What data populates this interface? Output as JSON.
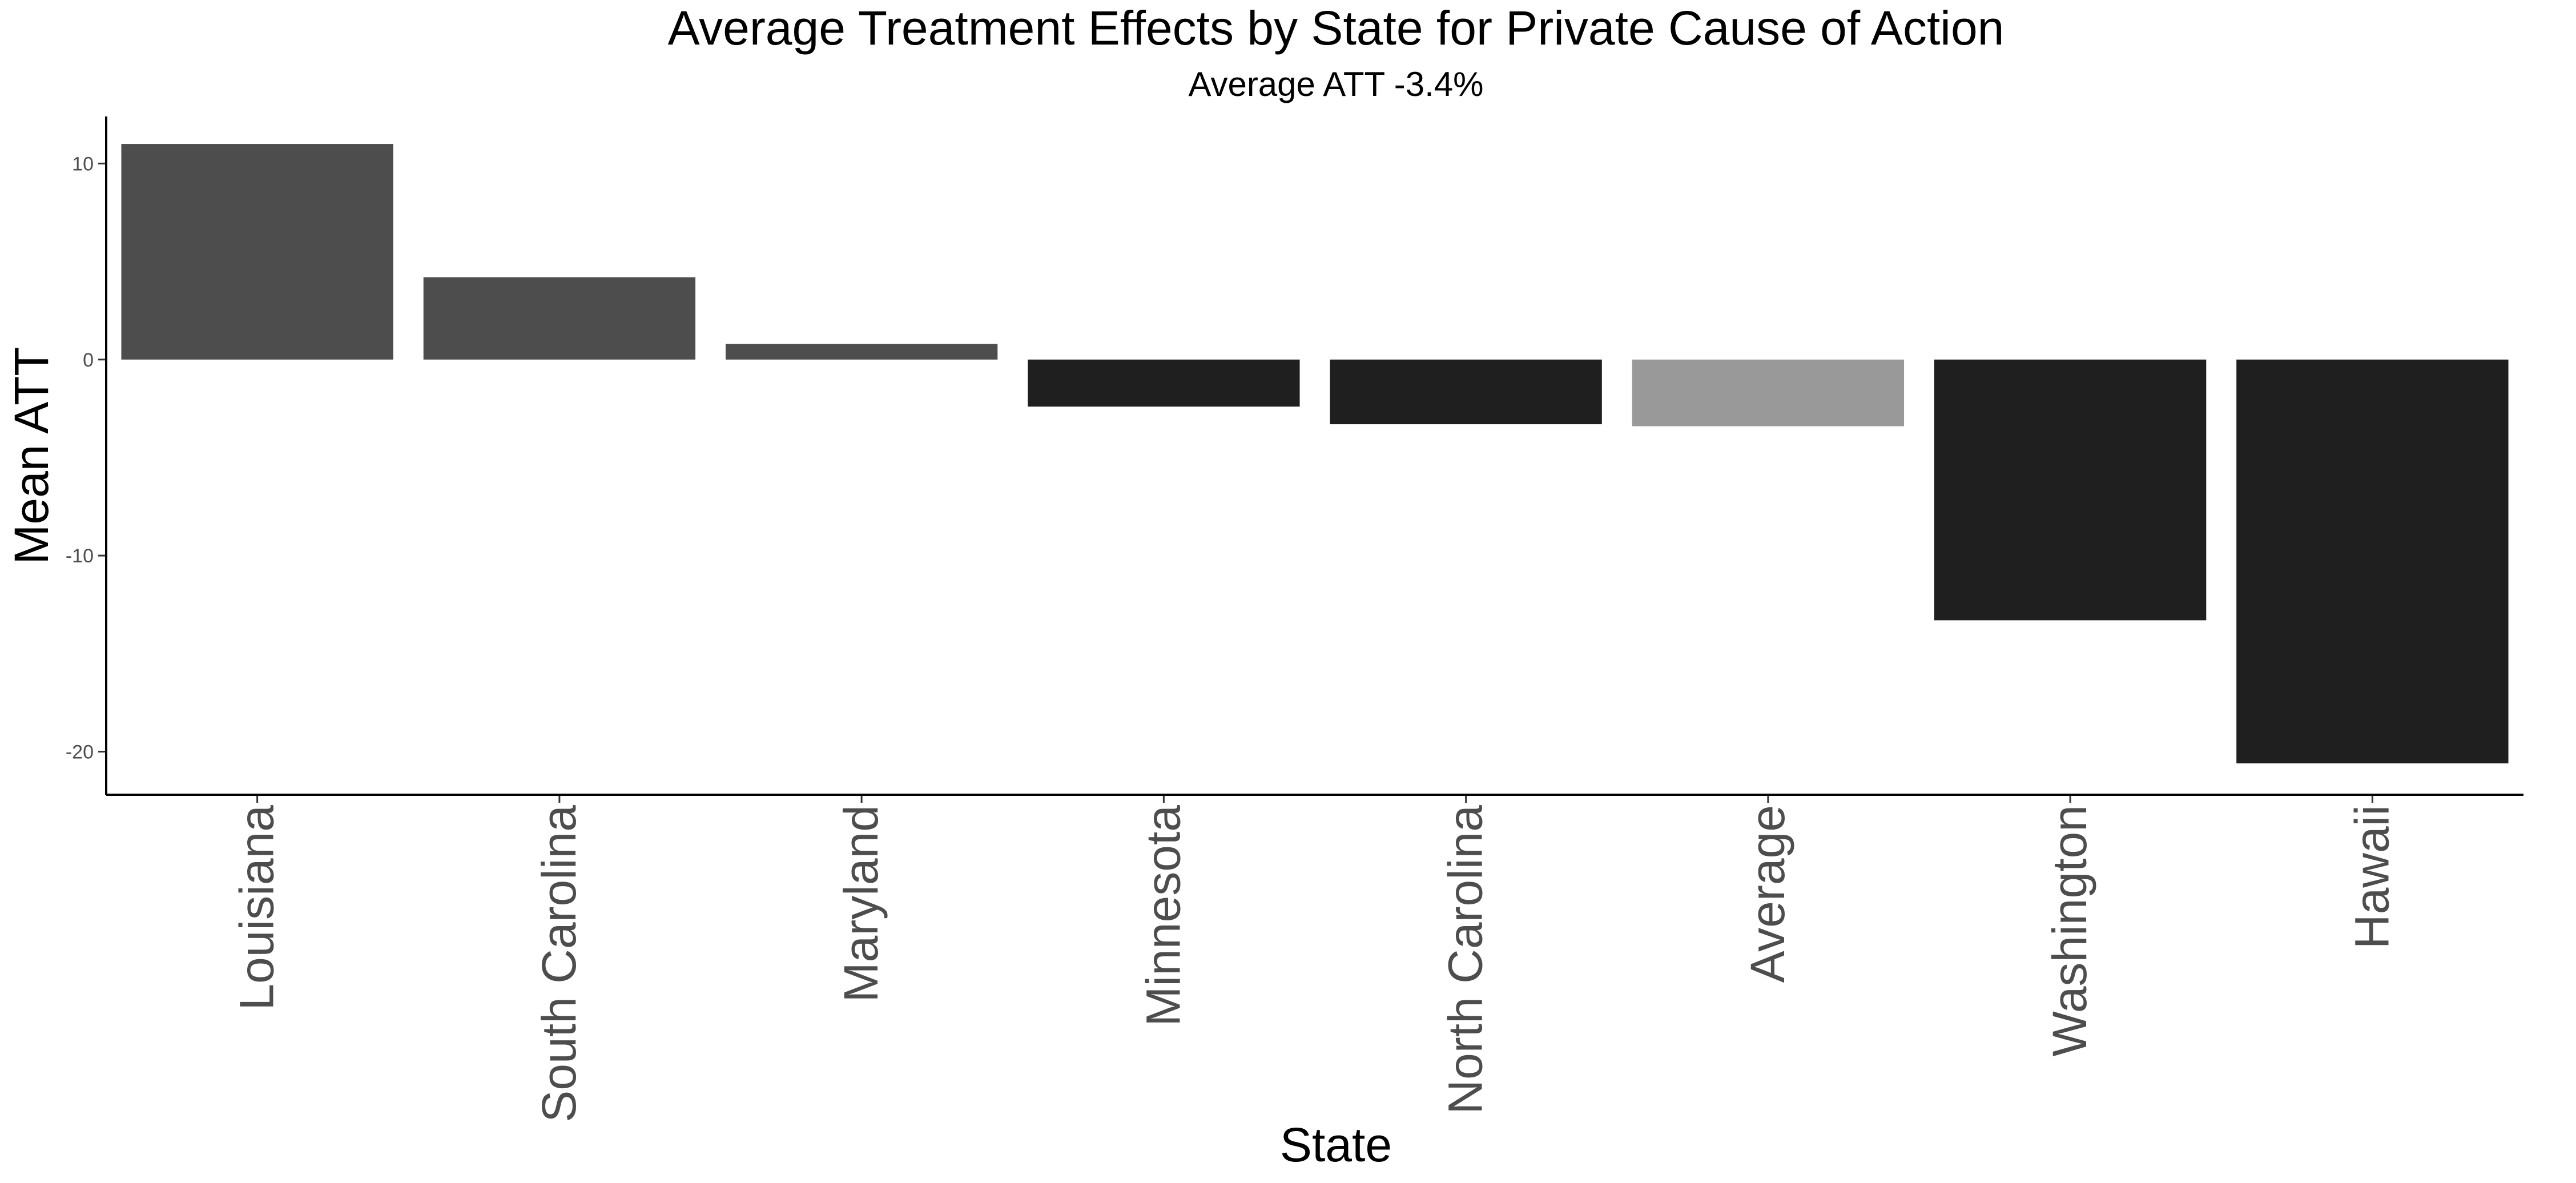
{
  "chart_data": {
    "type": "bar",
    "title": "Average Treatment Effects by State for Private Cause of Action",
    "subtitle": "Average ATT -3.4%",
    "xlabel": "State",
    "ylabel": "Mean ATT",
    "categories": [
      "Louisiana",
      "South Carolina",
      "Maryland",
      "Minnesota",
      "North Carolina",
      "Average",
      "Washington",
      "Hawaii"
    ],
    "values": [
      11.0,
      4.2,
      0.8,
      -2.4,
      -3.3,
      -3.4,
      -13.3,
      -20.6
    ],
    "bar_colors": [
      "#4d4d4d",
      "#4d4d4d",
      "#4d4d4d",
      "#1f1f1f",
      "#1f1f1f",
      "#999999",
      "#1f1f1f",
      "#1f1f1f"
    ],
    "y_ticks": [
      10,
      0,
      -10,
      -20
    ],
    "ylim": [
      -22.2,
      12.4
    ],
    "grid": false,
    "legend": "none"
  }
}
